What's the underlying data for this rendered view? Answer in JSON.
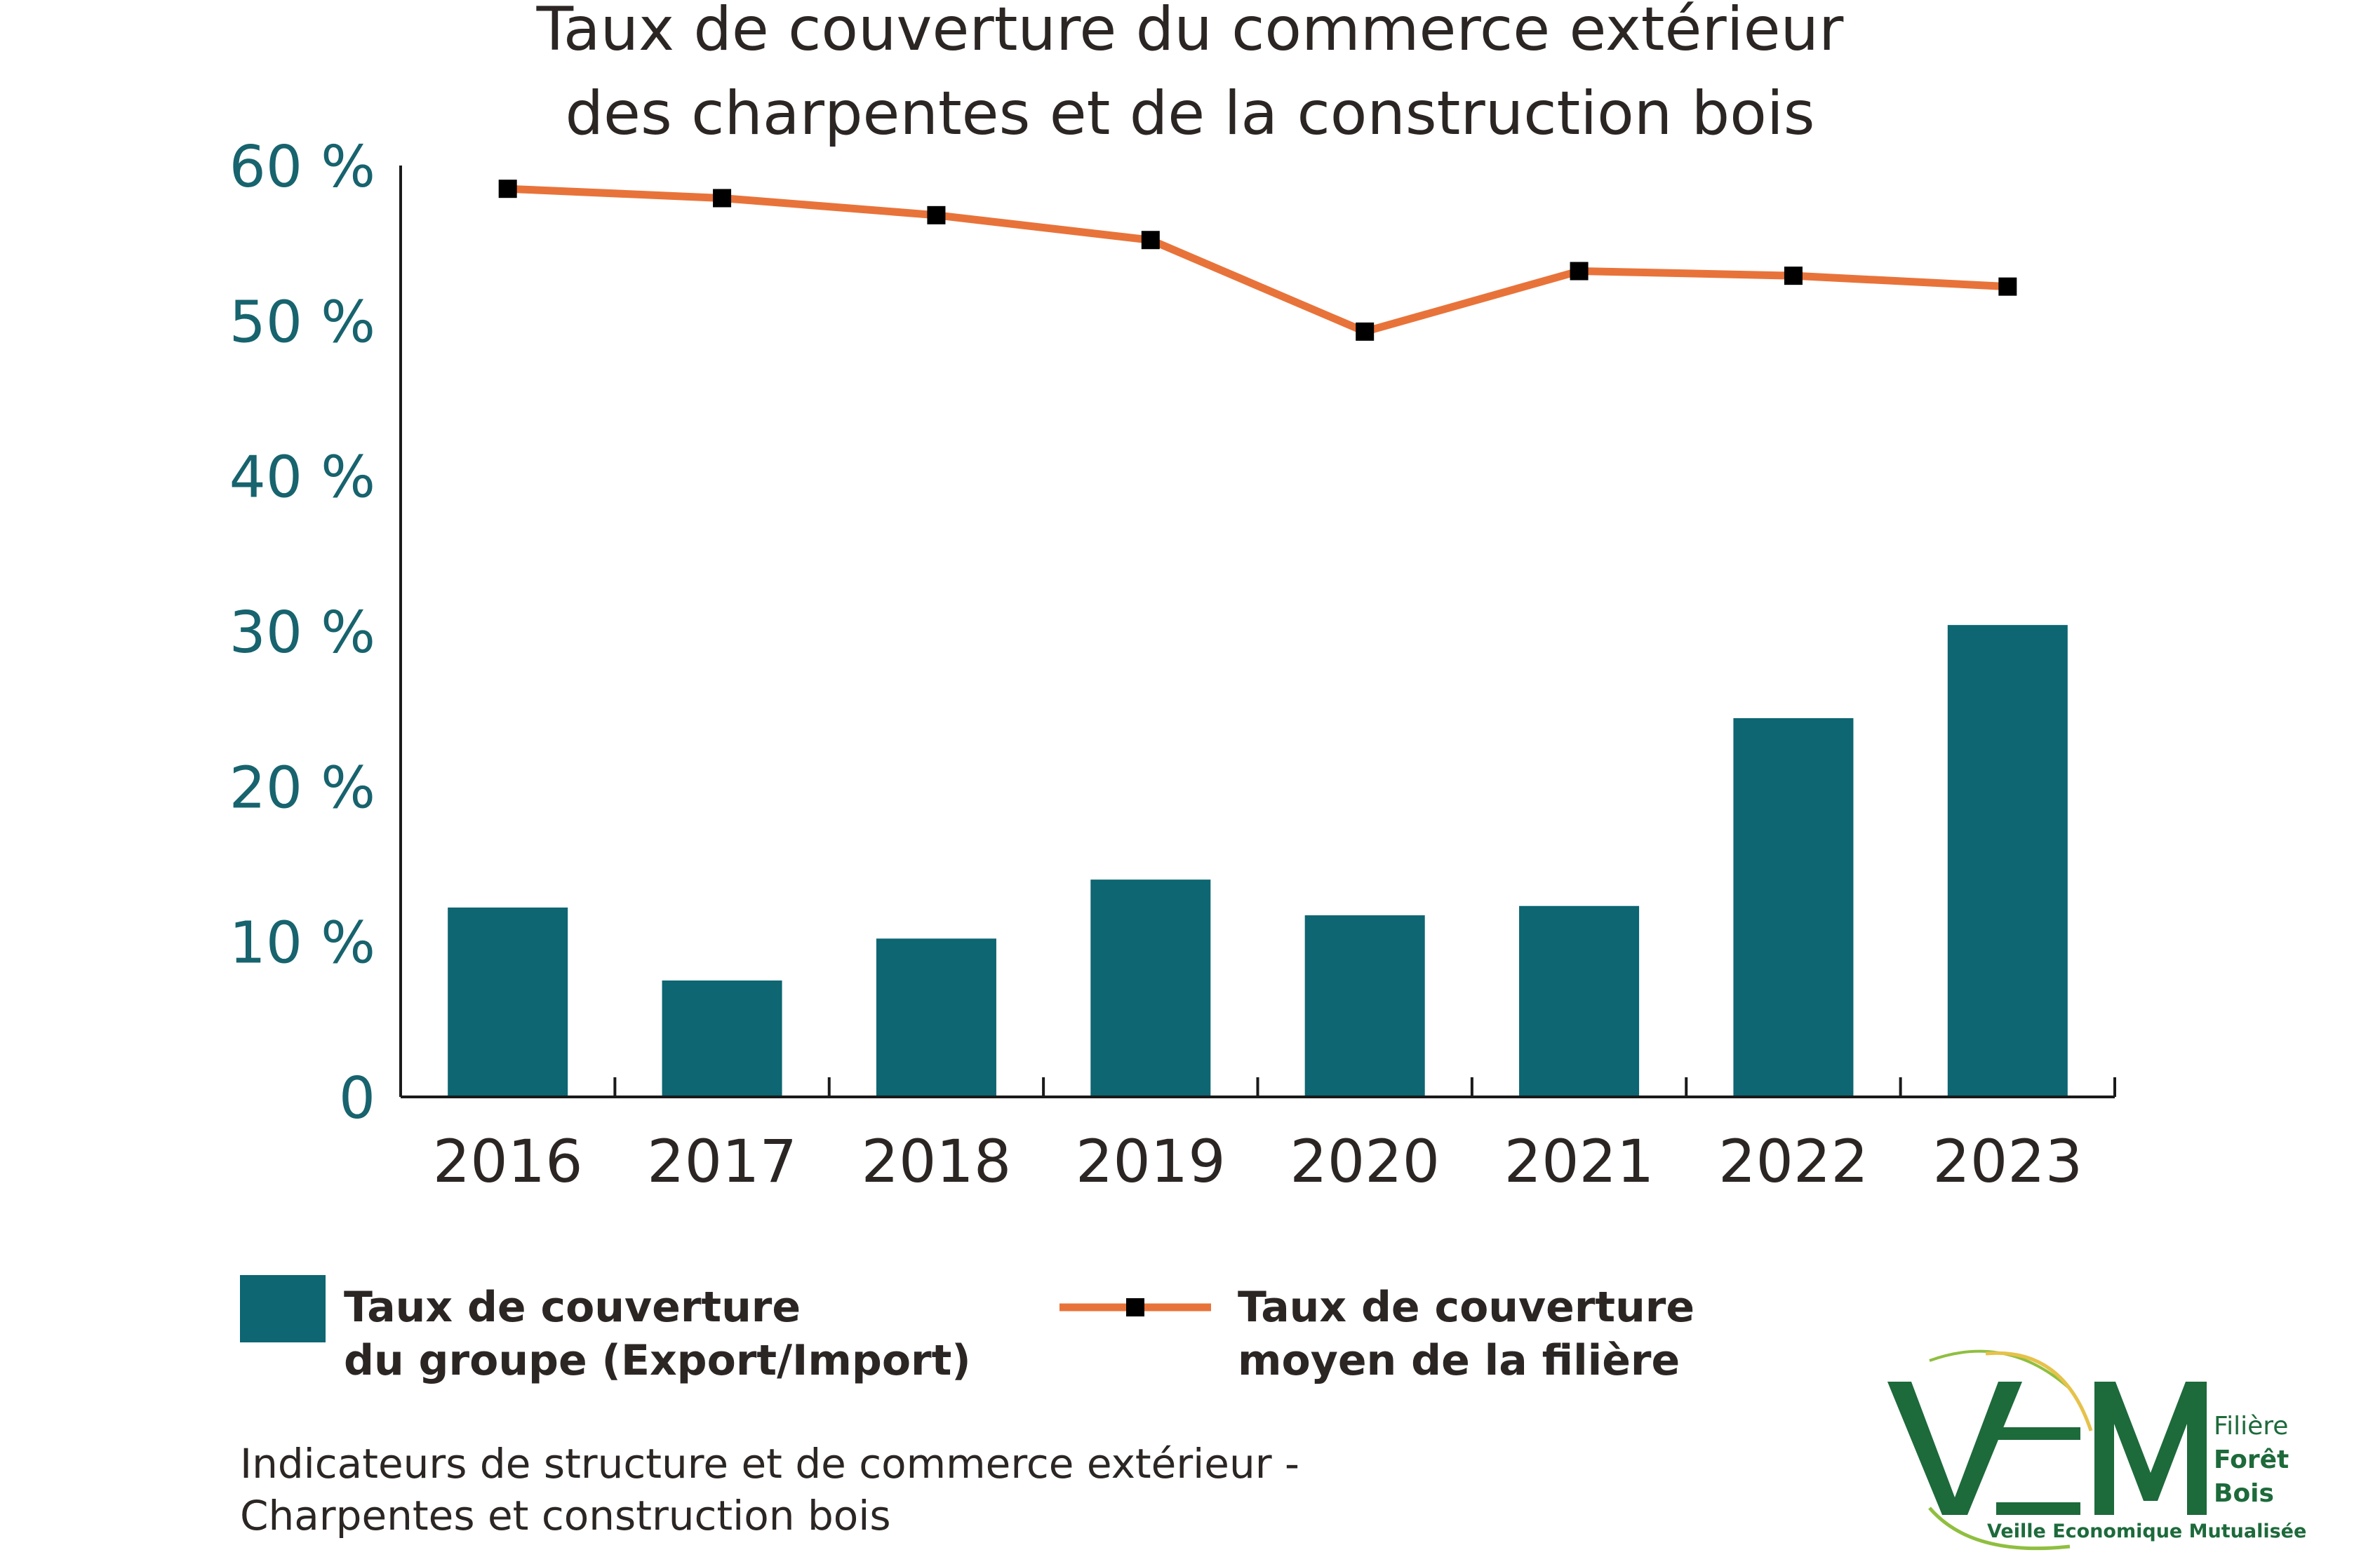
{
  "chart_data": {
    "type": "bar",
    "title": [
      "Taux de couverture du commerce extérieur",
      "des charpentes et de la construction bois"
    ],
    "categories": [
      "2016",
      "2017",
      "2018",
      "2019",
      "2020",
      "2021",
      "2022",
      "2023"
    ],
    "series": [
      {
        "name": "Taux de couverture du groupe (Export/Import)",
        "type": "bar",
        "color": "#0d6672",
        "values": [
          12.2,
          7.5,
          10.2,
          14.0,
          11.7,
          12.3,
          24.4,
          30.4
        ]
      },
      {
        "name": "Taux de couverture moyen de la filière",
        "type": "line",
        "color": "#e8733a",
        "marker_color": "#000000",
        "values": [
          58.5,
          57.9,
          56.8,
          55.2,
          49.3,
          53.2,
          52.9,
          52.2
        ]
      }
    ],
    "y_ticks": [
      "0",
      "10 %",
      "20 %",
      "30 %",
      "40 %",
      "50 %",
      "60 %"
    ],
    "ylim": [
      0,
      60
    ],
    "grid": false,
    "legend_placement": "bottom"
  },
  "legend": {
    "bar_label": [
      "Taux de couverture",
      "du groupe (Export/Import)"
    ],
    "line_label": [
      "Taux de couverture",
      "moyen de la filière"
    ]
  },
  "caption": [
    "Indicateurs de structure et de commerce extérieur -",
    "Charpentes et construction bois"
  ],
  "logo": {
    "letters": "VEM",
    "side_text": [
      "Filière",
      "Forêt",
      "Bois"
    ],
    "tagline": "Veille Economique Mutualisée",
    "color": "#1d6a3b"
  }
}
